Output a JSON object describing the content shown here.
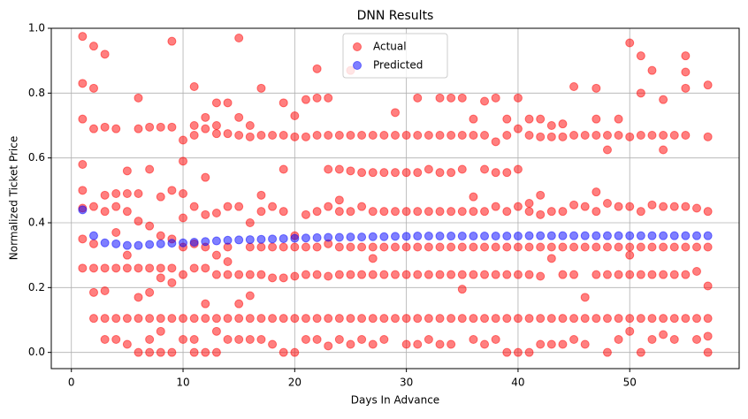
{
  "chart_data": {
    "type": "scatter",
    "title": "DNN Results",
    "xlabel": "Days In Advance",
    "ylabel": "Normalized Ticket Price",
    "xlim": [
      -1.8,
      59.8
    ],
    "ylim": [
      -0.05,
      1.0
    ],
    "xticks": [
      0,
      10,
      20,
      30,
      40,
      50
    ],
    "yticks": [
      {
        "value": 0,
        "label": "0.0"
      },
      0.2,
      0.4,
      0.6,
      0.8,
      {
        "value": 1,
        "label": "1.0"
      }
    ],
    "grid": true,
    "legend": "upper center",
    "series": [
      {
        "name": "Actual",
        "color": "#ff0000",
        "x": [
          1,
          1,
          1,
          1,
          1,
          1,
          1,
          1,
          2,
          2,
          2,
          2,
          2,
          2,
          2,
          2,
          3,
          3,
          3,
          3,
          3,
          3,
          3,
          3,
          4,
          4,
          4,
          4,
          4,
          4,
          4,
          5,
          5,
          5,
          5,
          5,
          5,
          5,
          6,
          6,
          6,
          6,
          6,
          6,
          6,
          6,
          7,
          7,
          7,
          7,
          7,
          7,
          7,
          7,
          8,
          8,
          8,
          8,
          8,
          8,
          8,
          8,
          9,
          9,
          9,
          9,
          9,
          9,
          9,
          9,
          10,
          10,
          10,
          10,
          10,
          10,
          10,
          10,
          11,
          11,
          11,
          11,
          11,
          11,
          11,
          11,
          11,
          12,
          12,
          12,
          12,
          12,
          12,
          12,
          12,
          12,
          13,
          13,
          13,
          13,
          13,
          13,
          13,
          13,
          13,
          14,
          14,
          14,
          14,
          14,
          14,
          14,
          14,
          15,
          15,
          15,
          15,
          15,
          15,
          15,
          15,
          16,
          16,
          16,
          16,
          16,
          16,
          16,
          16,
          17,
          17,
          17,
          17,
          17,
          17,
          17,
          17,
          18,
          18,
          18,
          18,
          18,
          18,
          19,
          19,
          19,
          19,
          19,
          19,
          19,
          19,
          20,
          20,
          20,
          20,
          20,
          20,
          20,
          21,
          21,
          21,
          21,
          21,
          21,
          21,
          22,
          22,
          22,
          22,
          22,
          22,
          22,
          22,
          23,
          23,
          23,
          23,
          23,
          23,
          23,
          23,
          24,
          24,
          24,
          24,
          24,
          24,
          24,
          24,
          25,
          25,
          25,
          25,
          25,
          25,
          25,
          25,
          26,
          26,
          26,
          26,
          26,
          26,
          26,
          27,
          27,
          27,
          27,
          27,
          27,
          27,
          27,
          28,
          28,
          28,
          28,
          28,
          28,
          28,
          29,
          29,
          29,
          29,
          29,
          29,
          29,
          30,
          30,
          30,
          30,
          30,
          30,
          30,
          31,
          31,
          31,
          31,
          31,
          31,
          31,
          31,
          32,
          32,
          32,
          32,
          32,
          32,
          32,
          33,
          33,
          33,
          33,
          33,
          33,
          33,
          33,
          34,
          34,
          34,
          34,
          34,
          34,
          34,
          34,
          35,
          35,
          35,
          35,
          35,
          35,
          35,
          35,
          36,
          36,
          36,
          36,
          36,
          36,
          36,
          36,
          37,
          37,
          37,
          37,
          37,
          37,
          37,
          37,
          38,
          38,
          38,
          38,
          38,
          38,
          38,
          38,
          39,
          39,
          39,
          39,
          39,
          39,
          39,
          39,
          40,
          40,
          40,
          40,
          40,
          40,
          40,
          40,
          41,
          41,
          41,
          41,
          41,
          41,
          41,
          41,
          42,
          42,
          42,
          42,
          42,
          42,
          42,
          42,
          43,
          43,
          43,
          43,
          43,
          43,
          43,
          44,
          44,
          44,
          44,
          44,
          44,
          44,
          45,
          45,
          45,
          45,
          45,
          45,
          45,
          46,
          46,
          46,
          46,
          46,
          46,
          47,
          47,
          47,
          47,
          47,
          47,
          47,
          47,
          48,
          48,
          48,
          48,
          48,
          48,
          48,
          49,
          49,
          49,
          49,
          49,
          49,
          49,
          50,
          50,
          50,
          50,
          50,
          50,
          50,
          50,
          51,
          51,
          51,
          51,
          51,
          51,
          51,
          51,
          52,
          52,
          52,
          52,
          52,
          52,
          52,
          53,
          53,
          53,
          53,
          53,
          53,
          53,
          53,
          54,
          54,
          54,
          54,
          54,
          54,
          55,
          55,
          55,
          55,
          55,
          55,
          55,
          55,
          56,
          56,
          56,
          56,
          56,
          57,
          57,
          57,
          57,
          57,
          57,
          57,
          57
        ],
        "values": [
          0.975,
          0.83,
          0.72,
          0.58,
          0.5,
          0.445,
          0.35,
          0.26,
          0.945,
          0.815,
          0.69,
          0.45,
          0.335,
          0.26,
          0.185,
          0.105,
          0.92,
          0.695,
          0.485,
          0.435,
          0.26,
          0.19,
          0.105,
          0.04,
          0.69,
          0.49,
          0.45,
          0.37,
          0.26,
          0.105,
          0.04,
          0.56,
          0.49,
          0.435,
          0.3,
          0.26,
          0.105,
          0.025,
          0.785,
          0.69,
          0.49,
          0.405,
          0.26,
          0.17,
          0.105,
          0.0,
          0.695,
          0.565,
          0.39,
          0.26,
          0.185,
          0.105,
          0.04,
          0.0,
          0.695,
          0.48,
          0.36,
          0.26,
          0.23,
          0.105,
          0.065,
          0.0,
          0.96,
          0.695,
          0.5,
          0.35,
          0.26,
          0.215,
          0.105,
          0.0,
          0.655,
          0.59,
          0.49,
          0.415,
          0.325,
          0.24,
          0.105,
          0.04,
          0.82,
          0.7,
          0.67,
          0.45,
          0.335,
          0.26,
          0.105,
          0.04,
          0.0,
          0.725,
          0.69,
          0.54,
          0.425,
          0.325,
          0.26,
          0.15,
          0.105,
          0.0,
          0.77,
          0.7,
          0.675,
          0.43,
          0.3,
          0.24,
          0.105,
          0.065,
          0.0,
          0.77,
          0.675,
          0.45,
          0.325,
          0.28,
          0.24,
          0.105,
          0.04,
          0.97,
          0.725,
          0.67,
          0.45,
          0.24,
          0.15,
          0.105,
          0.04,
          0.7,
          0.665,
          0.4,
          0.325,
          0.24,
          0.175,
          0.105,
          0.04,
          0.815,
          0.67,
          0.485,
          0.435,
          0.325,
          0.24,
          0.105,
          0.04,
          0.67,
          0.45,
          0.325,
          0.23,
          0.105,
          0.025,
          0.77,
          0.67,
          0.565,
          0.435,
          0.325,
          0.23,
          0.105,
          0.0,
          0.73,
          0.665,
          0.36,
          0.325,
          0.235,
          0.105,
          0.0,
          0.78,
          0.665,
          0.425,
          0.325,
          0.24,
          0.105,
          0.04,
          0.875,
          0.785,
          0.67,
          0.435,
          0.325,
          0.24,
          0.105,
          0.04,
          0.785,
          0.67,
          0.565,
          0.45,
          0.335,
          0.235,
          0.105,
          0.02,
          0.67,
          0.565,
          0.47,
          0.435,
          0.325,
          0.24,
          0.105,
          0.04,
          0.87,
          0.67,
          0.56,
          0.435,
          0.325,
          0.24,
          0.105,
          0.025,
          0.67,
          0.555,
          0.45,
          0.325,
          0.24,
          0.105,
          0.04,
          0.67,
          0.555,
          0.435,
          0.325,
          0.29,
          0.24,
          0.105,
          0.025,
          0.67,
          0.555,
          0.435,
          0.325,
          0.24,
          0.105,
          0.04,
          0.74,
          0.67,
          0.555,
          0.435,
          0.325,
          0.24,
          0.105,
          0.67,
          0.555,
          0.435,
          0.325,
          0.24,
          0.105,
          0.025,
          0.785,
          0.67,
          0.555,
          0.435,
          0.325,
          0.24,
          0.105,
          0.025,
          0.67,
          0.565,
          0.435,
          0.325,
          0.24,
          0.105,
          0.04,
          0.785,
          0.67,
          0.555,
          0.435,
          0.325,
          0.24,
          0.105,
          0.025,
          0.785,
          0.67,
          0.555,
          0.435,
          0.325,
          0.24,
          0.105,
          0.025,
          0.785,
          0.67,
          0.565,
          0.435,
          0.325,
          0.24,
          0.195,
          0.105,
          0.72,
          0.67,
          0.48,
          0.435,
          0.325,
          0.24,
          0.105,
          0.04,
          0.775,
          0.67,
          0.565,
          0.435,
          0.325,
          0.24,
          0.105,
          0.025,
          0.785,
          0.65,
          0.555,
          0.45,
          0.325,
          0.24,
          0.105,
          0.04,
          0.72,
          0.67,
          0.555,
          0.435,
          0.325,
          0.24,
          0.105,
          0.0,
          0.785,
          0.69,
          0.565,
          0.45,
          0.325,
          0.24,
          0.105,
          0.0,
          0.72,
          0.67,
          0.46,
          0.435,
          0.325,
          0.24,
          0.105,
          0.0,
          0.72,
          0.665,
          0.485,
          0.425,
          0.325,
          0.235,
          0.105,
          0.025,
          0.7,
          0.665,
          0.435,
          0.325,
          0.29,
          0.105,
          0.025,
          0.705,
          0.665,
          0.435,
          0.325,
          0.24,
          0.105,
          0.025,
          0.82,
          0.67,
          0.455,
          0.325,
          0.24,
          0.105,
          0.04,
          0.67,
          0.45,
          0.325,
          0.17,
          0.105,
          0.025,
          0.815,
          0.72,
          0.67,
          0.495,
          0.435,
          0.325,
          0.24,
          0.105,
          0.67,
          0.625,
          0.46,
          0.325,
          0.24,
          0.105,
          0.0,
          0.72,
          0.67,
          0.45,
          0.325,
          0.24,
          0.105,
          0.04,
          0.955,
          0.665,
          0.45,
          0.325,
          0.3,
          0.24,
          0.105,
          0.065,
          0.915,
          0.8,
          0.67,
          0.435,
          0.325,
          0.24,
          0.105,
          0.0,
          0.87,
          0.67,
          0.455,
          0.325,
          0.24,
          0.105,
          0.04,
          0.78,
          0.67,
          0.625,
          0.45,
          0.325,
          0.24,
          0.105,
          0.055,
          0.67,
          0.45,
          0.325,
          0.24,
          0.105,
          0.04,
          0.915,
          0.865,
          0.815,
          0.67,
          0.45,
          0.325,
          0.24,
          0.105,
          0.445,
          0.325,
          0.25,
          0.105,
          0.04,
          0.825,
          0.665,
          0.435,
          0.325,
          0.205,
          0.105,
          0.05,
          0.0
        ]
      },
      {
        "name": "Predicted",
        "color": "#0000ff",
        "x": [
          1,
          2,
          3,
          4,
          5,
          6,
          7,
          8,
          9,
          10,
          11,
          12,
          13,
          14,
          15,
          16,
          17,
          18,
          19,
          20,
          21,
          22,
          23,
          24,
          25,
          26,
          27,
          28,
          29,
          30,
          31,
          32,
          33,
          34,
          35,
          36,
          37,
          38,
          39,
          40,
          41,
          42,
          43,
          44,
          45,
          46,
          47,
          48,
          49,
          50,
          51,
          52,
          53,
          54,
          55,
          56,
          57
        ],
        "values": [
          0.44,
          0.36,
          0.338,
          0.335,
          0.33,
          0.33,
          0.333,
          0.335,
          0.337,
          0.338,
          0.34,
          0.342,
          0.344,
          0.346,
          0.347,
          0.348,
          0.349,
          0.35,
          0.351,
          0.352,
          0.353,
          0.354,
          0.355,
          0.355,
          0.356,
          0.356,
          0.357,
          0.357,
          0.358,
          0.358,
          0.359,
          0.359,
          0.359,
          0.359,
          0.359,
          0.359,
          0.359,
          0.359,
          0.359,
          0.359,
          0.36,
          0.36,
          0.36,
          0.36,
          0.36,
          0.36,
          0.36,
          0.36,
          0.36,
          0.36,
          0.36,
          0.36,
          0.36,
          0.36,
          0.36,
          0.36,
          0.36
        ]
      }
    ]
  }
}
